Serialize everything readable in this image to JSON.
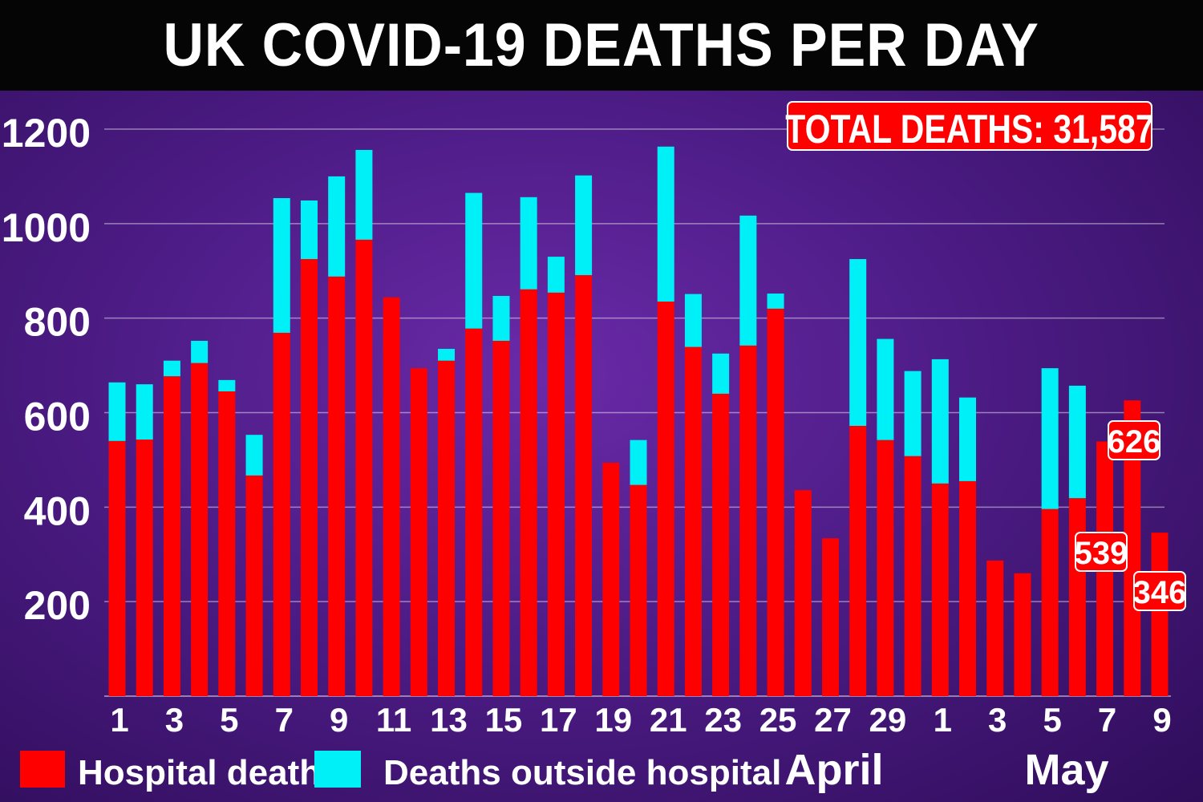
{
  "chart_data": {
    "type": "bar",
    "stacked": true,
    "title": "UK COVID-19 DEATHS PER DAY",
    "annotation": "TOTAL DEATHS: 31,587",
    "categories": [
      "1",
      "2",
      "3",
      "4",
      "5",
      "6",
      "7",
      "8",
      "9",
      "10",
      "11",
      "12",
      "13",
      "14",
      "15",
      "16",
      "17",
      "18",
      "19",
      "20",
      "21",
      "22",
      "23",
      "24",
      "25",
      "26",
      "27",
      "28",
      "29",
      "30",
      "1",
      "2",
      "3",
      "4",
      "5",
      "6",
      "7",
      "8",
      "9"
    ],
    "month_labels": [
      "April",
      "May"
    ],
    "x_tick_labels": [
      "1",
      "3",
      "5",
      "7",
      "9",
      "11",
      "13",
      "15",
      "17",
      "19",
      "21",
      "23",
      "25",
      "27",
      "29",
      "1",
      "3",
      "5",
      "7",
      "9"
    ],
    "series": [
      {
        "name": "Hospital deaths",
        "color": "#ff0000",
        "values": [
          540,
          543,
          677,
          705,
          645,
          467,
          769,
          925,
          888,
          966,
          844,
          694,
          710,
          778,
          752,
          861,
          854,
          891,
          494,
          447,
          835,
          739,
          640,
          742,
          820,
          436,
          334,
          572,
          542,
          508,
          450,
          455,
          287,
          260,
          396,
          419,
          539,
          626,
          346
        ]
      },
      {
        "name": "Deaths outside hospital",
        "color": "#00f0f8",
        "values": [
          124,
          117,
          33,
          47,
          24,
          86,
          285,
          124,
          212,
          190,
          0,
          0,
          25,
          287,
          95,
          195,
          76,
          211,
          0,
          95,
          328,
          112,
          85,
          275,
          32,
          0,
          0,
          353,
          214,
          180,
          263,
          177,
          0,
          0,
          298,
          238,
          0,
          0,
          0
        ]
      }
    ],
    "data_labels": [
      {
        "index": 36,
        "text": "539"
      },
      {
        "index": 37,
        "text": "626"
      },
      {
        "index": 38,
        "text": "346"
      }
    ],
    "ylim": [
      0,
      1200
    ],
    "y_ticks": [
      "200",
      "400",
      "600",
      "800",
      "1000",
      "1200"
    ],
    "grid": true,
    "legend": "bottom-left"
  }
}
